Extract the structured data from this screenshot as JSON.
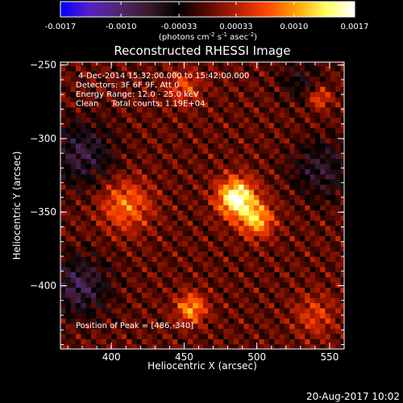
{
  "colorbar": {
    "ticks": [
      "-0.0017",
      "-0.0010",
      "-0.00033",
      "0.00033",
      "0.0010",
      "0.0017"
    ],
    "tick_values": [
      -0.0017,
      -0.001,
      -0.00033,
      0.00033,
      0.001,
      0.0017
    ],
    "range": [
      -0.0017,
      0.0017
    ],
    "unit_label_main": "(photons cm",
    "unit_sup1": "-2",
    "unit_mid": " s",
    "unit_sup2": "-1",
    "unit_mid2": " asec",
    "unit_sup3": "-2",
    "unit_end": ")",
    "colormap": [
      "#0000ff",
      "#5a1fc8",
      "#50286e",
      "#3a1a2a",
      "#000000",
      "#5a0a00",
      "#b41e00",
      "#ff4600",
      "#ffa000",
      "#ffff60",
      "#ffffff"
    ]
  },
  "chart_data": {
    "type": "heatmap",
    "title": "Reconstructed RHESSI Image",
    "xlabel": "Heliocentric X (arcsec)",
    "ylabel": "Heliocentric Y (arcsec)",
    "xlim": [
      365,
      560
    ],
    "ylim": [
      -443,
      -248
    ],
    "xticks": [
      400,
      450,
      500,
      550
    ],
    "yticks": [
      -250,
      -300,
      -350,
      -400
    ],
    "grid": false,
    "annotations": [
      "4-Dec-2014 15:32:00.000 to 15:42:00.000",
      "Detectors: 3F 6F 9F, Att 0",
      "Energy Range: 12.0 - 25.0 keV",
      "Clean     Total counts: 1.19E+04"
    ],
    "peak_label": "Position of Peak = [486,-340]",
    "peak": [
      486,
      -340
    ],
    "sources": [
      {
        "x": 486,
        "y": -340,
        "sigma": 9,
        "value": 0.0017
      },
      {
        "x": 500,
        "y": -355,
        "sigma": 8,
        "value": 0.0011
      },
      {
        "x": 455,
        "y": -415,
        "sigma": 7,
        "value": 0.001
      },
      {
        "x": 410,
        "y": -345,
        "sigma": 12,
        "value": 0.0008
      },
      {
        "x": 543,
        "y": -272,
        "sigma": 5,
        "value": 0.0007
      },
      {
        "x": 450,
        "y": -265,
        "sigma": 8,
        "value": 0.0006
      },
      {
        "x": 540,
        "y": -420,
        "sigma": 10,
        "value": 0.0005
      }
    ],
    "negative_regions": [
      {
        "x": 380,
        "y": -310,
        "sigma": 15,
        "value": -0.0007
      },
      {
        "x": 378,
        "y": -400,
        "sigma": 14,
        "value": -0.0008
      },
      {
        "x": 545,
        "y": -320,
        "sigma": 14,
        "value": -0.0006
      },
      {
        "x": 530,
        "y": -260,
        "sigma": 10,
        "value": -0.0004
      }
    ]
  },
  "timestamp": "20-Aug-2017 10:02"
}
